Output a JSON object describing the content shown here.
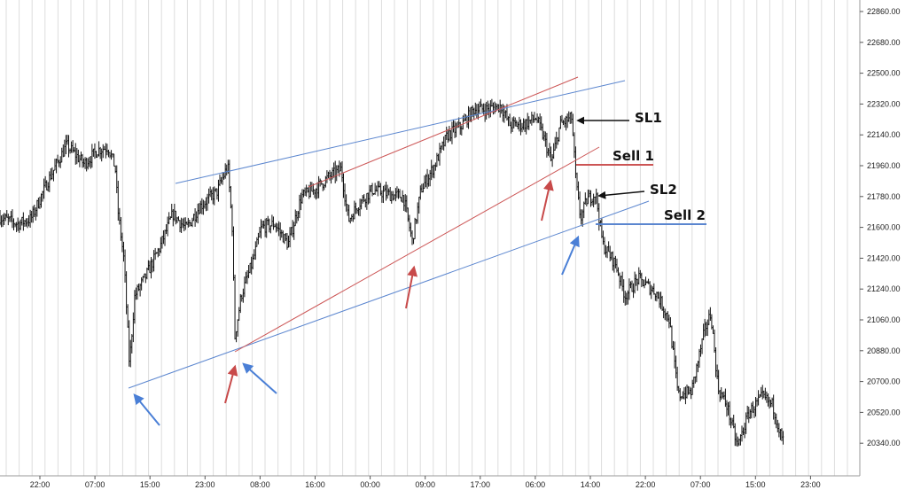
{
  "chart_data": {
    "type": "candlestick",
    "title": "",
    "xlabel": "",
    "ylabel": "",
    "grid": true,
    "ylim": [
      20250,
      22950
    ],
    "x_ticks": [
      "22:00",
      "07:00",
      "15:00",
      "23:00",
      "08:00",
      "16:00",
      "00:00",
      "09:00",
      "17:00",
      "06:00",
      "14:00",
      "22:00",
      "07:00",
      "15:00",
      "23:00"
    ],
    "y_ticks": [
      22860,
      22680,
      22500,
      22320,
      22140,
      21960,
      21780,
      21600,
      21420,
      21240,
      21060,
      20880,
      20700,
      20520,
      20340
    ],
    "y_tick_labels": [
      "22860.00",
      "22680.00",
      "22500.00",
      "22320.00",
      "22140.00",
      "21960.00",
      "21780.00",
      "21600.00",
      "21420.00",
      "21240.00",
      "21060.00",
      "20880.00",
      "20700.00",
      "20520.00",
      "20340.00"
    ],
    "price_path": [
      [
        0,
        21660
      ],
      [
        20,
        21620
      ],
      [
        35,
        21650
      ],
      [
        55,
        21880
      ],
      [
        75,
        22080
      ],
      [
        95,
        21970
      ],
      [
        110,
        22050
      ],
      [
        122,
        22070
      ],
      [
        130,
        21950
      ],
      [
        133,
        21700
      ],
      [
        140,
        21400
      ],
      [
        146,
        20800
      ],
      [
        152,
        21200
      ],
      [
        165,
        21320
      ],
      [
        180,
        21480
      ],
      [
        195,
        21680
      ],
      [
        210,
        21590
      ],
      [
        225,
        21720
      ],
      [
        245,
        21810
      ],
      [
        257,
        21960
      ],
      [
        262,
        21600
      ],
      [
        265,
        20960
      ],
      [
        272,
        21200
      ],
      [
        285,
        21400
      ],
      [
        295,
        21600
      ],
      [
        310,
        21620
      ],
      [
        325,
        21500
      ],
      [
        340,
        21780
      ],
      [
        355,
        21820
      ],
      [
        370,
        21890
      ],
      [
        385,
        21940
      ],
      [
        393,
        21640
      ],
      [
        405,
        21740
      ],
      [
        420,
        21820
      ],
      [
        440,
        21790
      ],
      [
        455,
        21780
      ],
      [
        465,
        21520
      ],
      [
        475,
        21820
      ],
      [
        490,
        21960
      ],
      [
        505,
        22140
      ],
      [
        520,
        22190
      ],
      [
        535,
        22290
      ],
      [
        550,
        22290
      ],
      [
        565,
        22310
      ],
      [
        575,
        22200
      ],
      [
        590,
        22200
      ],
      [
        605,
        22240
      ],
      [
        615,
        22100
      ],
      [
        622,
        21980
      ],
      [
        632,
        22200
      ],
      [
        645,
        22240
      ],
      [
        650,
        21850
      ],
      [
        655,
        21650
      ],
      [
        662,
        21760
      ],
      [
        672,
        21800
      ],
      [
        680,
        21500
      ],
      [
        695,
        21380
      ],
      [
        705,
        21200
      ],
      [
        720,
        21300
      ],
      [
        740,
        21220
      ],
      [
        755,
        21060
      ],
      [
        765,
        20620
      ],
      [
        780,
        20640
      ],
      [
        795,
        21000
      ],
      [
        802,
        21100
      ],
      [
        810,
        20660
      ],
      [
        820,
        20560
      ],
      [
        832,
        20320
      ],
      [
        845,
        20520
      ],
      [
        860,
        20610
      ],
      [
        872,
        20560
      ],
      [
        882,
        20360
      ]
    ],
    "annotations": [
      {
        "label": "SL1",
        "price": 22255
      },
      {
        "label": "Sell 1",
        "price": 22000
      },
      {
        "label": "SL2",
        "price": 21815
      },
      {
        "label": "Sell 2",
        "price": 21680
      }
    ],
    "colors": {
      "candles": "#111111",
      "blue_lines": "#5b86cf",
      "red_lines": "#cc5555",
      "blue_arrows": "#4a7fd6",
      "red_arrows": "#c84a4a",
      "grid": "#dddddd"
    }
  }
}
